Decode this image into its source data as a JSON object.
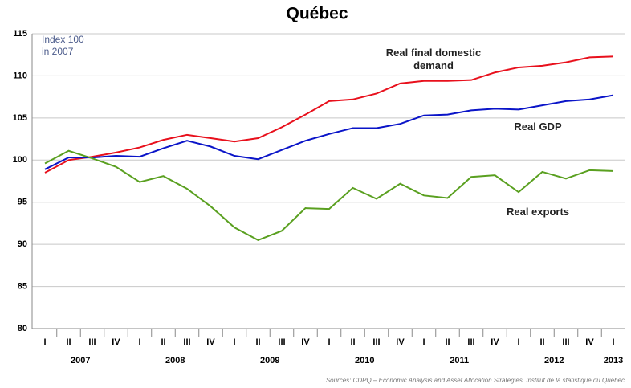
{
  "chart_data": {
    "type": "line",
    "title": "Québec",
    "y_label": "Index 100 in 2007",
    "categories": [
      "I",
      "II",
      "III",
      "IV",
      "I",
      "II",
      "III",
      "IV",
      "I",
      "II",
      "III",
      "IV",
      "I",
      "II",
      "III",
      "IV",
      "I",
      "II",
      "III",
      "IV",
      "I",
      "II",
      "III",
      "IV",
      "I"
    ],
    "years": [
      "2007",
      "2008",
      "2009",
      "2010",
      "2011",
      "2012",
      "2013"
    ],
    "series": [
      {
        "name": "Real final domestic demand",
        "color": "#e8101c",
        "values": [
          98.5,
          100.0,
          100.4,
          100.9,
          101.5,
          102.4,
          103.0,
          102.6,
          102.2,
          102.6,
          103.9,
          105.4,
          107.0,
          107.2,
          107.9,
          109.1,
          109.4,
          109.4,
          109.5,
          110.4,
          111.0,
          111.2,
          111.6,
          112.2,
          112.3
        ]
      },
      {
        "name": "Real GDP",
        "color": "#0a14c8",
        "values": [
          98.9,
          100.3,
          100.3,
          100.5,
          100.4,
          101.4,
          102.3,
          101.6,
          100.5,
          100.1,
          101.2,
          102.3,
          103.1,
          103.8,
          103.8,
          104.3,
          105.3,
          105.4,
          105.9,
          106.1,
          106.0,
          106.5,
          107.0,
          107.2,
          107.7
        ]
      },
      {
        "name": "Real exports",
        "color": "#5aa020",
        "values": [
          99.6,
          101.1,
          100.2,
          99.2,
          97.4,
          98.1,
          96.6,
          94.5,
          92.0,
          90.5,
          91.6,
          94.3,
          94.2,
          96.7,
          95.4,
          97.2,
          95.8,
          95.5,
          98.0,
          98.2,
          96.2,
          98.6,
          97.8,
          98.8,
          98.7
        ]
      }
    ],
    "ylim": [
      80,
      115
    ],
    "yticks": [
      80,
      85,
      90,
      95,
      100,
      105,
      110,
      115
    ],
    "grid": true,
    "source": "Sources: CDPQ – Economic Analysis and Asset Allocation Strategies, Institut de la statistique du Québec"
  }
}
